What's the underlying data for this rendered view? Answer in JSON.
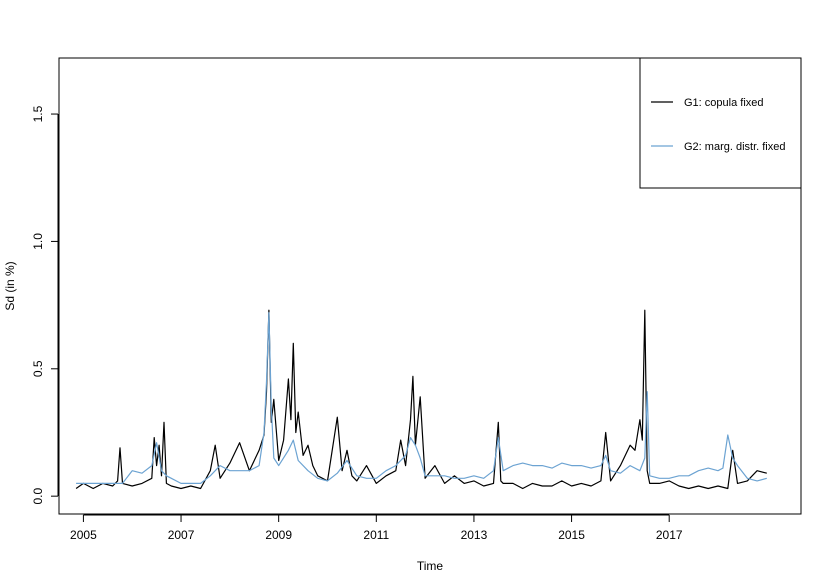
{
  "chart_data": {
    "type": "line",
    "title": "",
    "xlabel": "Time",
    "ylabel": "Sd (in %)",
    "xlim": [
      2004.5,
      2019.7
    ],
    "ylim": [
      -0.07,
      1.72
    ],
    "x_ticks": [
      2005,
      2007,
      2009,
      2011,
      2013,
      2015,
      2017
    ],
    "x_tick_labels": [
      "2005",
      "2007",
      "2009",
      "2011",
      "2013",
      "2015",
      "2017"
    ],
    "y_ticks": [
      0.0,
      0.5,
      1.0,
      1.5
    ],
    "y_tick_labels": [
      "0.0",
      "0.5",
      "1.0",
      "1.5"
    ],
    "grid": false,
    "legend": {
      "position": "top-right"
    },
    "series": [
      {
        "name": "G1: copula fixed",
        "color": "#000000",
        "x": [
          2004.85,
          2005.0,
          2005.2,
          2005.4,
          2005.6,
          2005.7,
          2005.75,
          2005.8,
          2006.0,
          2006.2,
          2006.4,
          2006.45,
          2006.5,
          2006.55,
          2006.6,
          2006.65,
          2006.7,
          2006.8,
          2007.0,
          2007.2,
          2007.4,
          2007.6,
          2007.7,
          2007.8,
          2008.0,
          2008.2,
          2008.4,
          2008.6,
          2008.7,
          2008.75,
          2008.8,
          2008.85,
          2008.9,
          2009.0,
          2009.1,
          2009.2,
          2009.25,
          2009.3,
          2009.35,
          2009.4,
          2009.5,
          2009.6,
          2009.7,
          2009.8,
          2010.0,
          2010.2,
          2010.3,
          2010.4,
          2010.5,
          2010.6,
          2010.8,
          2011.0,
          2011.2,
          2011.4,
          2011.5,
          2011.6,
          2011.7,
          2011.75,
          2011.8,
          2011.9,
          2012.0,
          2012.2,
          2012.4,
          2012.6,
          2012.8,
          2013.0,
          2013.2,
          2013.4,
          2013.5,
          2013.55,
          2013.6,
          2013.8,
          2014.0,
          2014.2,
          2014.4,
          2014.6,
          2014.8,
          2015.0,
          2015.2,
          2015.4,
          2015.6,
          2015.7,
          2015.8,
          2016.0,
          2016.2,
          2016.3,
          2016.4,
          2016.45,
          2016.5,
          2016.55,
          2016.6,
          2016.8,
          2017.0,
          2017.2,
          2017.4,
          2017.6,
          2017.8,
          2018.0,
          2018.2,
          2018.3,
          2018.4,
          2018.6,
          2018.8,
          2019.0
        ],
        "values": [
          0.03,
          0.05,
          0.03,
          0.05,
          0.04,
          0.06,
          0.19,
          0.05,
          0.04,
          0.05,
          0.07,
          0.23,
          0.12,
          0.2,
          0.08,
          0.29,
          0.05,
          0.04,
          0.03,
          0.04,
          0.03,
          0.1,
          0.2,
          0.07,
          0.13,
          0.21,
          0.1,
          0.18,
          0.24,
          0.41,
          0.73,
          0.29,
          0.38,
          0.14,
          0.22,
          0.46,
          0.3,
          0.6,
          0.25,
          0.33,
          0.16,
          0.2,
          0.12,
          0.08,
          0.06,
          0.31,
          0.1,
          0.18,
          0.08,
          0.06,
          0.12,
          0.05,
          0.08,
          0.1,
          0.22,
          0.12,
          0.3,
          0.47,
          0.2,
          0.39,
          0.07,
          0.12,
          0.05,
          0.08,
          0.05,
          0.06,
          0.04,
          0.05,
          0.29,
          0.06,
          0.05,
          0.05,
          0.03,
          0.05,
          0.04,
          0.04,
          0.06,
          0.04,
          0.05,
          0.04,
          0.06,
          0.25,
          0.06,
          0.12,
          0.2,
          0.18,
          0.3,
          0.22,
          0.73,
          0.1,
          0.05,
          0.05,
          0.06,
          0.04,
          0.03,
          0.04,
          0.03,
          0.04,
          0.03,
          0.18,
          0.05,
          0.06,
          0.1,
          0.09
        ]
      },
      {
        "name": "G2: marg. distr. fixed",
        "color": "#6ca3d2",
        "x": [
          2004.85,
          2005.0,
          2005.2,
          2005.4,
          2005.6,
          2005.8,
          2006.0,
          2006.2,
          2006.4,
          2006.5,
          2006.6,
          2006.7,
          2006.8,
          2007.0,
          2007.2,
          2007.4,
          2007.6,
          2007.8,
          2008.0,
          2008.2,
          2008.4,
          2008.6,
          2008.7,
          2008.75,
          2008.8,
          2008.85,
          2008.9,
          2009.0,
          2009.2,
          2009.3,
          2009.4,
          2009.6,
          2009.8,
          2010.0,
          2010.2,
          2010.4,
          2010.6,
          2010.8,
          2011.0,
          2011.2,
          2011.4,
          2011.6,
          2011.7,
          2011.8,
          2011.9,
          2012.0,
          2012.2,
          2012.4,
          2012.6,
          2012.8,
          2013.0,
          2013.2,
          2013.4,
          2013.5,
          2013.6,
          2013.8,
          2014.0,
          2014.2,
          2014.4,
          2014.6,
          2014.8,
          2015.0,
          2015.2,
          2015.4,
          2015.6,
          2015.7,
          2015.8,
          2016.0,
          2016.2,
          2016.4,
          2016.5,
          2016.55,
          2016.6,
          2016.8,
          2017.0,
          2017.2,
          2017.4,
          2017.6,
          2017.8,
          2018.0,
          2018.1,
          2018.2,
          2018.3,
          2018.4,
          2018.6,
          2018.8,
          2019.0
        ],
        "values": [
          0.05,
          0.05,
          0.05,
          0.05,
          0.05,
          0.05,
          0.1,
          0.09,
          0.12,
          0.21,
          0.1,
          0.08,
          0.07,
          0.05,
          0.05,
          0.05,
          0.08,
          0.12,
          0.1,
          0.1,
          0.1,
          0.12,
          0.25,
          0.45,
          0.72,
          0.35,
          0.15,
          0.12,
          0.18,
          0.22,
          0.14,
          0.1,
          0.07,
          0.06,
          0.09,
          0.14,
          0.08,
          0.07,
          0.07,
          0.1,
          0.12,
          0.16,
          0.23,
          0.2,
          0.15,
          0.08,
          0.08,
          0.08,
          0.07,
          0.07,
          0.08,
          0.07,
          0.1,
          0.23,
          0.1,
          0.12,
          0.13,
          0.12,
          0.12,
          0.11,
          0.13,
          0.12,
          0.12,
          0.11,
          0.12,
          0.16,
          0.1,
          0.09,
          0.12,
          0.1,
          0.15,
          0.41,
          0.08,
          0.07,
          0.07,
          0.08,
          0.08,
          0.1,
          0.11,
          0.1,
          0.11,
          0.24,
          0.15,
          0.12,
          0.07,
          0.06,
          0.07
        ]
      }
    ]
  }
}
